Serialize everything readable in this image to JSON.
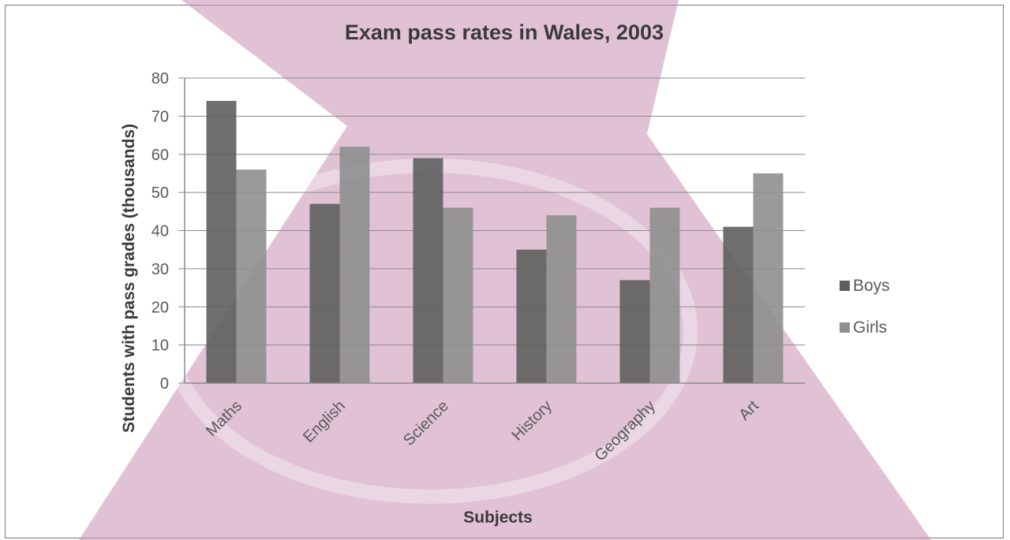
{
  "chart_data": {
    "type": "bar",
    "title": "Exam pass rates in Wales, 2003",
    "xlabel": "Subjects",
    "ylabel": "Students with pass grades (thousands)",
    "categories": [
      "Maths",
      "English",
      "Science",
      "History",
      "Geography",
      "Art"
    ],
    "series": [
      {
        "name": "Boys",
        "values": [
          74,
          47,
          59,
          35,
          27,
          41
        ],
        "color": "#5f5f5f"
      },
      {
        "name": "Girls",
        "values": [
          56,
          62,
          46,
          44,
          46,
          55
        ],
        "color": "#8f8f8f"
      }
    ],
    "ylim": [
      0,
      80
    ],
    "yticks": [
      0,
      10,
      20,
      30,
      40,
      50,
      60,
      70,
      80
    ],
    "grid": true,
    "legend_position": "right",
    "background_overlay_color": "#c98fb3"
  }
}
